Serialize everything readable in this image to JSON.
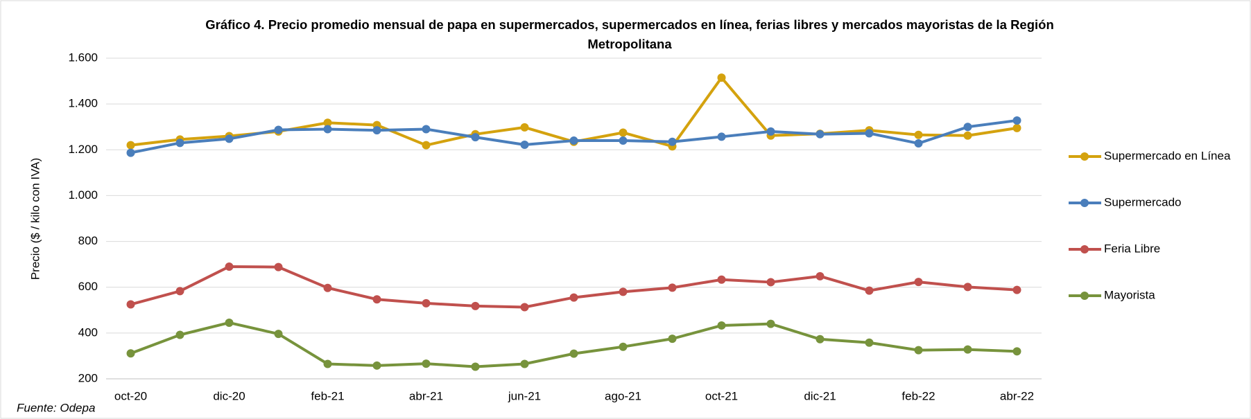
{
  "chart_data": {
    "type": "line",
    "title": "Gráfico 4. Precio promedio mensual de papa en supermercados, supermercados en línea, ferias libres y mercados mayoristas de la Región Metropolitana",
    "y_label": "Precio ($ / kilo con IVA)",
    "source": "Fuente: Odepa",
    "categories": [
      "oct-20",
      null,
      "dic-20",
      null,
      "feb-21",
      null,
      "abr-21",
      null,
      "jun-21",
      null,
      "ago-21",
      null,
      "oct-21",
      null,
      "dic-21",
      null,
      "feb-22",
      null,
      "abr-22"
    ],
    "series": [
      {
        "name": "Supermercado en Línea",
        "color": "#d4a20e",
        "values": [
          1220,
          1245,
          1260,
          1280,
          1318,
          1308,
          1220,
          1268,
          1298,
          1235,
          1275,
          1215,
          1515,
          1262,
          1270,
          1285,
          1265,
          1262,
          1295
        ]
      },
      {
        "name": "Supermercado",
        "color": "#4a7ebb",
        "values": [
          1187,
          1230,
          1248,
          1287,
          1290,
          1285,
          1290,
          1255,
          1222,
          1240,
          1240,
          1235,
          1257,
          1280,
          1268,
          1272,
          1228,
          1300,
          1328
        ]
      },
      {
        "name": "Feria Libre",
        "color": "#c0504d",
        "values": [
          525,
          583,
          690,
          688,
          597,
          547,
          530,
          518,
          513,
          555,
          580,
          598,
          633,
          622,
          648,
          585,
          623,
          601,
          588
        ]
      },
      {
        "name": "Mayorista",
        "color": "#77933c",
        "values": [
          311,
          392,
          445,
          396,
          265,
          258,
          266,
          253,
          265,
          310,
          340,
          375,
          433,
          440,
          373,
          358,
          325,
          328,
          320
        ]
      }
    ],
    "ylim": [
      200,
      1600
    ],
    "yticks": [
      200,
      400,
      600,
      800,
      {
        "value": 1000,
        "label": "1.000"
      },
      {
        "value": 1200,
        "label": "1.200"
      },
      {
        "value": 1400,
        "label": "1.400"
      },
      {
        "value": 1600,
        "label": "1.600"
      }
    ],
    "grid": true,
    "legend": "right"
  }
}
